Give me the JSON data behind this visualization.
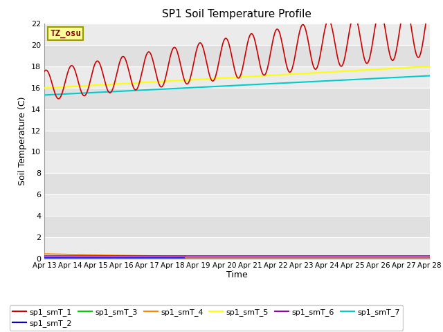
{
  "title": "SP1 Soil Temperature Profile",
  "xlabel": "Time",
  "ylabel": "Soil Temperature (C)",
  "annotation": "TZ_osu",
  "annotation_color": "#8B0000",
  "annotation_bg": "#FFFF99",
  "annotation_border": "#999900",
  "plot_bg_light": "#EBEBEB",
  "plot_bg_dark": "#DDDDDD",
  "ylim": [
    0,
    22
  ],
  "yticks": [
    0,
    2,
    4,
    6,
    8,
    10,
    12,
    14,
    16,
    18,
    20,
    22
  ],
  "xtick_labels": [
    "Apr 13",
    "Apr 14",
    "Apr 15",
    "Apr 16",
    "Apr 17",
    "Apr 18",
    "Apr 19",
    "Apr 20",
    "Apr 21",
    "Apr 22",
    "Apr 23",
    "Apr 24",
    "Apr 25",
    "Apr 26",
    "Apr 27",
    "Apr 28"
  ],
  "legend_labels": [
    "sp1_smT_1",
    "sp1_smT_2",
    "sp1_smT_3",
    "sp1_smT_4",
    "sp1_smT_5",
    "sp1_smT_6",
    "sp1_smT_7"
  ],
  "legend_colors": [
    "#CC0000",
    "#0000CC",
    "#00CC00",
    "#FF8800",
    "#FFFF00",
    "#9900AA",
    "#00CCCC"
  ],
  "n_days": 15,
  "n_points_per_day": 48
}
